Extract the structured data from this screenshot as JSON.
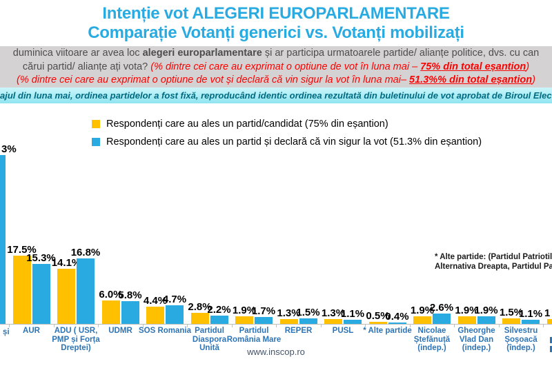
{
  "title": {
    "line1": "Intenție vot ALEGERI EUROPARLAMENTARE",
    "line2": "Comparație Votanți generici vs. Votanți mobilizați"
  },
  "question_band": {
    "line1_prefix": "duminica viitoare ar avea loc ",
    "line1_bold": "alegeri europarlamentare",
    "line1_suffix": " și ar participa urmatoarele partide/ alianțe politice, dvs. cu can",
    "line2_plain": "cărui partid/ alianțe ați vota? ",
    "line2_red": "(% dintre cei care au exprimat o optiune de vot în luna mai – ",
    "line2_red_bold": "75% din total eșantion",
    "line2_close": ")",
    "line3_red": "(% dintre cei care au exprimat o optiune de vot și declară că vin sigur la vot în luna mai– ",
    "line3_red_bold": "51.3%% din total eșantion",
    "line3_close": ")"
  },
  "note_band": {
    "text_visible": "ajul din luna mai, ordinea partidelor a fost fixă, reproducând identic ordinea rezultată din buletinului de vot aprobat de Biroul Electoral C"
  },
  "legend": [
    {
      "color": "#FFC000",
      "label": "Respondenți care au ales un partid/candidat (75% din eșantion)"
    },
    {
      "color": "#29ABE2",
      "label": "Respondenți care au ales un partid și declară că vin sigur la vot (51.3% din eșantion)"
    }
  ],
  "annotation": {
    "line1": "* Alte partide: (Partidul Patriotilor,",
    "line2": "Alternativa Dreapta, Partidul Patrio"
  },
  "footer": {
    "website": "www.inscop.ro"
  },
  "colors": {
    "title_blue": "#29ABE2",
    "gray_band_bg": "#D4D2D2",
    "gray_band_text": "#4D4D4D",
    "red_text": "#FF0000",
    "cyan_band_bg": "#A5EAF5",
    "cyan_band_text": "#006B80",
    "bar_yellow": "#FFC000",
    "bar_blue": "#29ABE2",
    "category_label_blue": "#2E74B5",
    "axis_gray": "#BFBFBF",
    "footer_text": "#44546A"
  },
  "chart_data": {
    "type": "bar",
    "title": "Intenție vot ALEGERI EUROPARLAMENTARE — Comparație Votanți generici vs. Votanți mobilizați",
    "xlabel": "",
    "ylabel": "",
    "ylim": [
      0,
      45
    ],
    "grid": false,
    "legend_position": "top",
    "series": [
      {
        "name": "Respondenți care au ales un partid/candidat (75% din eșantion)",
        "color": "#FFC000"
      },
      {
        "name": "Respondenți care au ales un partid și declară că vin sigur la vot (51.3% din eșantion)",
        "color": "#29ABE2"
      }
    ],
    "categories": [
      {
        "name_visible": "și",
        "partial": "left",
        "lines": [
          "și"
        ],
        "yellow": null,
        "blue": 43.3,
        "yellow_label": null,
        "blue_label": "3%",
        "note": "category clipped at left edge; only blue bar and label tail visible"
      },
      {
        "name": "AUR",
        "lines": [
          "AUR"
        ],
        "yellow": 17.5,
        "blue": 15.3,
        "yellow_label": "17.5%",
        "blue_label": "15.3%"
      },
      {
        "name": "ADU ( USR, PMP și Forța Dreptei)",
        "lines": [
          "ADU ( USR,",
          "PMP și Forța",
          "Dreptei)"
        ],
        "yellow": 14.1,
        "blue": 16.8,
        "yellow_label": "14.1%",
        "blue_label": "16.8%"
      },
      {
        "name": "UDMR",
        "lines": [
          "UDMR"
        ],
        "yellow": 6.0,
        "blue": 5.8,
        "yellow_label": "6.0%",
        "blue_label": "5.8%"
      },
      {
        "name": "SOS Romania",
        "lines": [
          "SOS Romania"
        ],
        "yellow": 4.4,
        "blue": 4.7,
        "yellow_label": "4.4%",
        "blue_label": "4.7%"
      },
      {
        "name": "Partidul Diaspora Unită",
        "lines": [
          "Partidul",
          "Diaspora",
          "Unită"
        ],
        "yellow": 2.8,
        "blue": 2.2,
        "yellow_label": "2.8%",
        "blue_label": "2.2%"
      },
      {
        "name": "Partidul România Mare",
        "lines": [
          "Partidul",
          "România Mare"
        ],
        "yellow": 1.9,
        "blue": 1.7,
        "yellow_label": "1.9%",
        "blue_label": "1.7%"
      },
      {
        "name": "REPER",
        "lines": [
          "REPER"
        ],
        "yellow": 1.3,
        "blue": 1.5,
        "yellow_label": "1.3%",
        "blue_label": "1.5%"
      },
      {
        "name": "PUSL",
        "lines": [
          "PUSL"
        ],
        "yellow": 1.3,
        "blue": 1.1,
        "yellow_label": "1.3%",
        "blue_label": "1.1%"
      },
      {
        "name": "* Alte partide",
        "lines": [
          "* Alte partide"
        ],
        "yellow": 0.5,
        "blue": 0.4,
        "yellow_label": "0.5%",
        "blue_label": "0.4%"
      },
      {
        "name": "Nicolae Ștefănuță (indep.)",
        "lines": [
          "Nicolae",
          "Ștefănuță",
          "(indep.)"
        ],
        "yellow": 1.9,
        "blue": 2.6,
        "yellow_label": "1.9%",
        "blue_label": "2.6%"
      },
      {
        "name": "Gheorghe Vlad Dan (indep.)",
        "lines": [
          "Gheorghe",
          "Vlad Dan",
          "(indep.)"
        ],
        "yellow": 1.9,
        "blue": 1.9,
        "yellow_label": "1.9%",
        "blue_label": "1.9%"
      },
      {
        "name": "Silvestru Șoșoacă (îndep.)",
        "lines": [
          "Silvestru",
          "Șoșoacă",
          "(îndep.)"
        ],
        "yellow": 1.5,
        "blue": 1.1,
        "yellow_label": "1.5%",
        "blue_label": "1.1%"
      },
      {
        "name_visible": "1",
        "partial": "right",
        "lines": [],
        "yellow": 1.3,
        "blue": null,
        "yellow_label": "1",
        "blue_label": null,
        "note": "category clipped at right edge; only yellow bar sliver and label start visible"
      }
    ]
  }
}
